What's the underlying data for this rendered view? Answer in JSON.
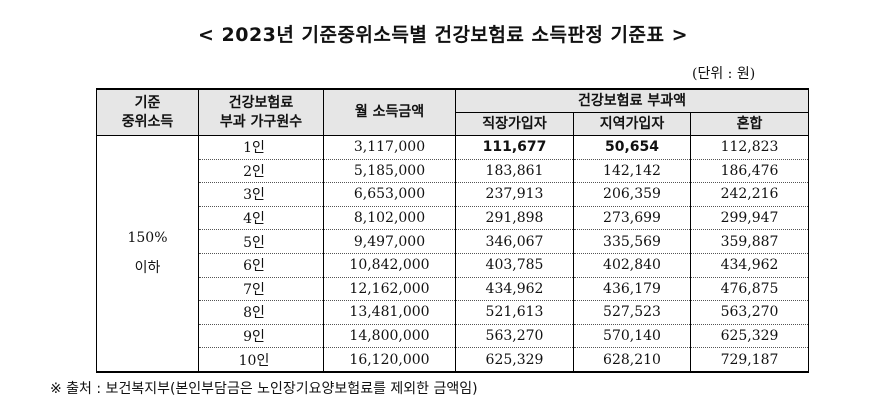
{
  "title": "< 2023년 기준중위소득별 건강보험료 소득판정 기준표 >",
  "unit": "(단위 : 원)",
  "headers": {
    "median_income_line1": "기준",
    "median_income_line2": "중위소득",
    "household_line1": "건강보험료",
    "household_line2": "부과 가구원수",
    "monthly_income": "월 소득금액",
    "premium_group": "건강보험료 부과액",
    "employee": "직장가입자",
    "regional": "지역가입자",
    "mixed": "혼합"
  },
  "income_level_line1": "150%",
  "income_level_line2": "이하",
  "rows": [
    {
      "household": "1인",
      "income": "3,117,000",
      "employee": "111,677",
      "regional": "50,654",
      "mixed": "112,823"
    },
    {
      "household": "2인",
      "income": "5,185,000",
      "employee": "183,861",
      "regional": "142,142",
      "mixed": "186,476"
    },
    {
      "household": "3인",
      "income": "6,653,000",
      "employee": "237,913",
      "regional": "206,359",
      "mixed": "242,216"
    },
    {
      "household": "4인",
      "income": "8,102,000",
      "employee": "291,898",
      "regional": "273,699",
      "mixed": "299,947"
    },
    {
      "household": "5인",
      "income": "9,497,000",
      "employee": "346,067",
      "regional": "335,569",
      "mixed": "359,887"
    },
    {
      "household": "6인",
      "income": "10,842,000",
      "employee": "403,785",
      "regional": "402,840",
      "mixed": "434,962"
    },
    {
      "household": "7인",
      "income": "12,162,000",
      "employee": "434,962",
      "regional": "436,179",
      "mixed": "476,875"
    },
    {
      "household": "8인",
      "income": "13,481,000",
      "employee": "521,613",
      "regional": "527,523",
      "mixed": "563,270"
    },
    {
      "household": "9인",
      "income": "14,800,000",
      "employee": "563,270",
      "regional": "570,140",
      "mixed": "625,329"
    },
    {
      "household": "10인",
      "income": "16,120,000",
      "employee": "625,329",
      "regional": "628,210",
      "mixed": "729,187"
    }
  ],
  "note": "※ 출처 : 보건복지부(본인부담금은 노인장기요양보험료를 제외한 금액임)"
}
